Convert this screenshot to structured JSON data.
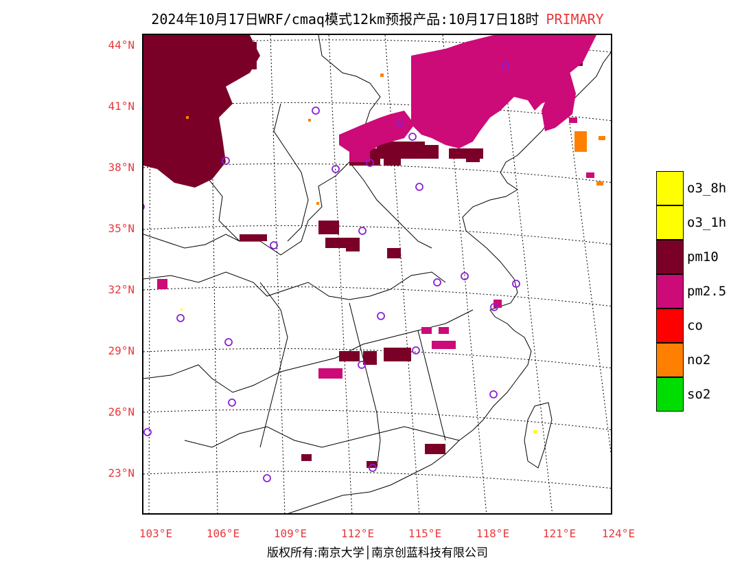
{
  "title": "2024年10月17日WRF/cmaq模式12km预报产品:10月17日18时",
  "title_tag": "PRIMARY",
  "lat_labels": [
    "44°N",
    "41°N",
    "38°N",
    "35°N",
    "32°N",
    "29°N",
    "26°N",
    "23°N"
  ],
  "lon_labels": [
    "103°E",
    "106°E",
    "109°E",
    "112°E",
    "115°E",
    "118°E",
    "121°E",
    "124°E"
  ],
  "legend": [
    {
      "label": "o3_8h",
      "color": "#ffff00"
    },
    {
      "label": "o3_1h",
      "color": "#ffff00"
    },
    {
      "label": "pm10",
      "color": "#7a0028"
    },
    {
      "label": "pm2.5",
      "color": "#cc0a78"
    },
    {
      "label": "co",
      "color": "#ff0000"
    },
    {
      "label": "no2",
      "color": "#ff7f00"
    },
    {
      "label": "so2",
      "color": "#00dd00"
    }
  ],
  "footer": "版权所有:南京大学│南京创蓝科技有限公司",
  "colors": {
    "label_red": "#e8383c",
    "pm10": "#7a0028",
    "pm25": "#cc0a78",
    "no2": "#ff7f00",
    "station": "#8a1fd6"
  }
}
